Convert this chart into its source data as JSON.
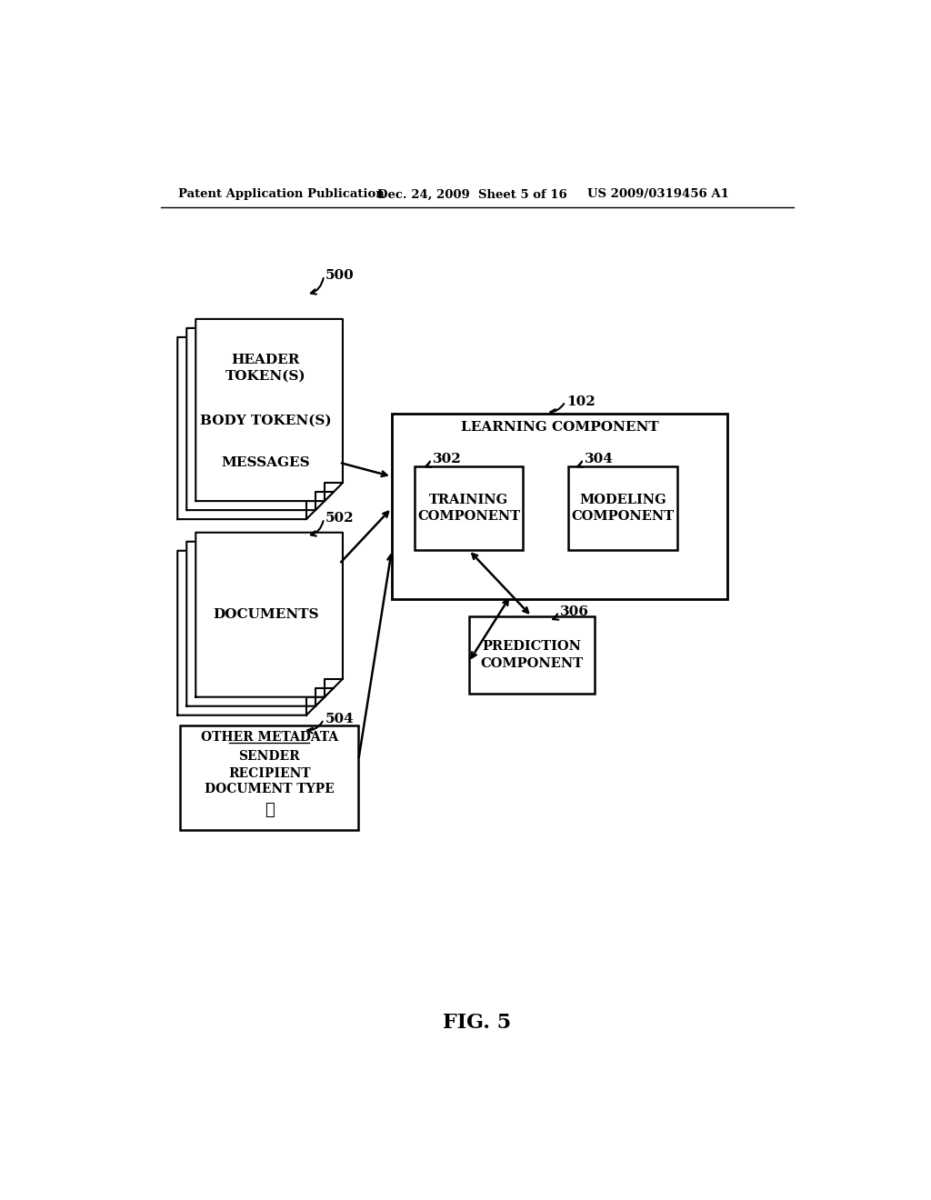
{
  "bg_color": "#ffffff",
  "header_text1": "Patent Application Publication",
  "header_text2": "Dec. 24, 2009  Sheet 5 of 16",
  "header_text3": "US 2009/0319456 A1",
  "fig_label": "FIG. 5",
  "label_500": "500",
  "label_502": "502",
  "label_504": "504",
  "label_102": "102",
  "label_302": "302",
  "label_304": "304",
  "label_306": "306",
  "learning_label": "LEARNING COMPONENT",
  "training_label": "TRAINING\nCOMPONENT",
  "modeling_label": "MODELING\nCOMPONENT",
  "prediction_label": "PREDICTION\nCOMPONENT",
  "msg_text1": "HEADER\nTOKEN(S)",
  "msg_text2": "BODY TOKEN(S)",
  "msg_text3": "MESSAGES",
  "doc_text": "DOCUMENTS",
  "meta_text0": "OTHER METADATA",
  "meta_text1": "SENDER",
  "meta_text2": "RECIPIENT",
  "meta_text3": "DOCUMENT TYPE",
  "meta_text4": "⋮"
}
